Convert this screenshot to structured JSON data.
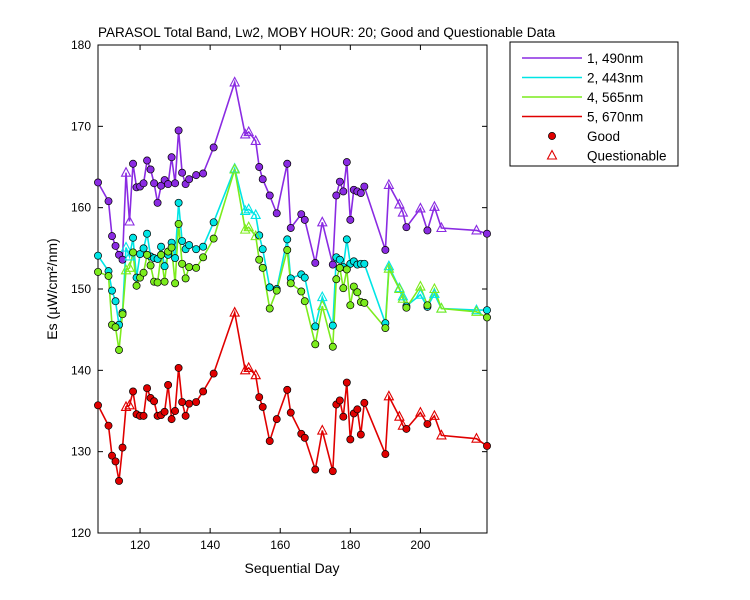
{
  "chart_data": {
    "type": "line",
    "title": "PARASOL Total Band,  Lw2, MOBY HOUR: 20;  Good and Questionable Data",
    "xlabel": "Sequential Day",
    "ylabel": "Es (µW/cm²/nm)",
    "xlim": [
      108,
      219
    ],
    "ylim": [
      120,
      180
    ],
    "xticks": [
      120,
      140,
      160,
      180,
      200
    ],
    "yticks": [
      120,
      130,
      140,
      150,
      160,
      170,
      180
    ],
    "grid": false,
    "legend_position": "outside-top-right",
    "legend": {
      "good_label": "Good",
      "questionable_label": "Questionable",
      "marker_color": "#e00000"
    },
    "x": [
      108,
      111,
      112,
      113,
      114,
      115,
      116,
      117,
      118,
      119,
      120,
      121,
      122,
      123,
      124,
      125,
      126,
      127,
      128,
      129,
      130,
      131,
      132,
      133,
      134,
      136,
      138,
      141,
      147,
      150,
      151,
      153,
      154,
      155,
      157,
      159,
      162,
      163,
      166,
      167,
      170,
      172,
      175,
      176,
      177,
      178,
      179,
      180,
      181,
      182,
      183,
      184,
      190,
      191,
      194,
      195,
      196,
      200,
      202,
      204,
      206,
      216,
      219
    ],
    "quality": [
      "G",
      "G",
      "G",
      "G",
      "G",
      "G",
      "Q",
      "Q",
      "G",
      "G",
      "G",
      "G",
      "G",
      "G",
      "G",
      "G",
      "G",
      "G",
      "G",
      "G",
      "G",
      "G",
      "G",
      "G",
      "G",
      "G",
      "G",
      "G",
      "Q",
      "Q",
      "Q",
      "Q",
      "G",
      "G",
      "G",
      "G",
      "G",
      "G",
      "G",
      "G",
      "G",
      "Q",
      "G",
      "G",
      "G",
      "G",
      "G",
      "G",
      "G",
      "G",
      "G",
      "G",
      "G",
      "Q",
      "Q",
      "Q",
      "G",
      "Q",
      "G",
      "Q",
      "Q",
      "Q",
      "G"
    ],
    "series": [
      {
        "name": "1, 490nm",
        "color": "#8a2be2",
        "values": [
          163.1,
          160.8,
          156.5,
          155.3,
          154.2,
          153.6,
          164.3,
          158.3,
          165.4,
          162.5,
          162.6,
          163.0,
          165.8,
          164.7,
          163.0,
          160.6,
          162.7,
          163.4,
          162.9,
          166.2,
          163.0,
          169.5,
          164.3,
          162.9,
          163.5,
          164.0,
          164.2,
          167.4,
          175.4,
          169.0,
          169.3,
          168.2,
          165.0,
          163.5,
          161.5,
          159.3,
          165.4,
          157.5,
          159.2,
          158.5,
          153.2,
          158.2,
          153.0,
          161.5,
          163.2,
          162.0,
          165.6,
          158.5,
          162.2,
          162.0,
          161.8,
          162.6,
          154.8,
          162.8,
          160.4,
          159.4,
          157.6,
          159.9,
          157.2,
          160.1,
          157.5,
          157.2,
          156.8
        ]
      },
      {
        "name": "2, 443nm",
        "color": "#00e5e5",
        "values": [
          154.1,
          152.2,
          149.8,
          148.5,
          145.6,
          147.1,
          155.1,
          154.0,
          156.3,
          151.4,
          154.3,
          155.0,
          156.8,
          154.0,
          153.8,
          153.7,
          155.2,
          152.8,
          154.2,
          155.7,
          153.8,
          160.6,
          155.9,
          154.9,
          155.4,
          154.9,
          155.2,
          158.2,
          164.8,
          159.6,
          159.8,
          159.1,
          156.6,
          154.9,
          150.2,
          150.0,
          156.1,
          151.3,
          151.8,
          151.4,
          145.4,
          149.0,
          145.5,
          153.9,
          153.6,
          152.7,
          156.1,
          153.1,
          153.4,
          153.0,
          153.1,
          153.1,
          145.8,
          152.8,
          150.1,
          149.1,
          147.9,
          149.3,
          147.8,
          149.4,
          147.6,
          147.4,
          147.4
        ]
      },
      {
        "name": "4, 565nm",
        "color": "#7cec1d",
        "values": [
          152.1,
          151.6,
          145.6,
          145.3,
          142.5,
          146.9,
          152.3,
          152.6,
          154.5,
          150.4,
          151.4,
          152.0,
          154.2,
          152.9,
          150.9,
          150.8,
          154.2,
          150.9,
          154.6,
          155.1,
          150.7,
          158.0,
          153.1,
          151.3,
          152.7,
          152.6,
          153.9,
          156.2,
          164.7,
          157.3,
          157.6,
          156.5,
          153.6,
          152.6,
          147.6,
          149.8,
          154.8,
          150.7,
          149.7,
          148.5,
          143.2,
          147.9,
          142.9,
          151.2,
          152.6,
          150.1,
          152.4,
          148.0,
          150.3,
          149.6,
          148.4,
          148.3,
          145.2,
          152.5,
          150.0,
          148.8,
          147.7,
          150.3,
          148.0,
          150.0,
          147.6,
          147.2,
          146.5
        ]
      },
      {
        "name": "5, 670nm",
        "color": "#e00000",
        "values": [
          135.7,
          133.2,
          129.5,
          128.8,
          126.4,
          130.5,
          135.5,
          135.7,
          137.4,
          134.6,
          134.4,
          134.4,
          137.8,
          136.6,
          136.2,
          134.4,
          134.5,
          134.9,
          138.2,
          134.0,
          135.0,
          140.3,
          136.1,
          134.4,
          135.9,
          136.1,
          137.4,
          139.6,
          147.1,
          140.0,
          140.3,
          139.4,
          136.7,
          135.5,
          131.3,
          134.0,
          137.6,
          134.8,
          132.2,
          131.7,
          127.8,
          132.6,
          127.6,
          135.8,
          136.3,
          134.3,
          138.5,
          131.5,
          134.7,
          135.2,
          132.1,
          136.0,
          129.7,
          136.8,
          134.3,
          133.2,
          132.8,
          134.8,
          133.4,
          134.4,
          132.0,
          131.6,
          130.7
        ]
      }
    ]
  }
}
